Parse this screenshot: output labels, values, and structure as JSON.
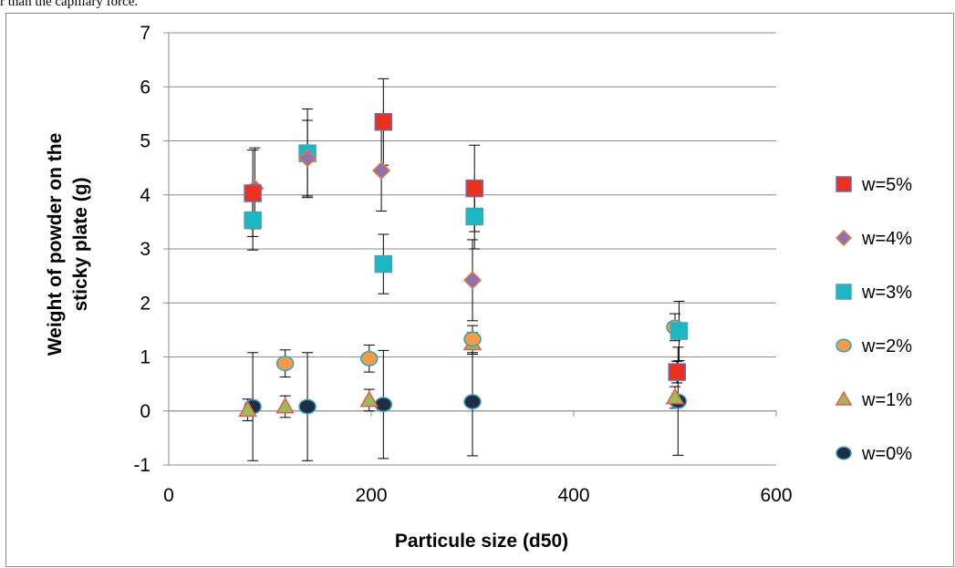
{
  "top_text": "r than the capillary force.",
  "chart_data": {
    "type": "scatter",
    "title": "",
    "xlabel": "Particule size (d50)",
    "ylabel": "Weight of powder on the sticky plate (g)",
    "xlim": [
      0,
      600
    ],
    "ylim": [
      -1,
      7
    ],
    "xticks": [
      0,
      200,
      400,
      600
    ],
    "yticks": [
      -1,
      0,
      1,
      2,
      3,
      4,
      5,
      6,
      7
    ],
    "grid": "horizontal",
    "legend_position": "right",
    "series": [
      {
        "name": "w=5%",
        "marker": "square",
        "color": "#e8321e",
        "border": "#7b64a8",
        "points": [
          {
            "x": 83,
            "y": 4.03,
            "err": 0.8
          },
          {
            "x": 212,
            "y": 5.35,
            "err": 0.8
          },
          {
            "x": 302,
            "y": 4.12,
            "err": 0.8
          },
          {
            "x": 502,
            "y": 0.72,
            "err": 0.2
          }
        ]
      },
      {
        "name": "w=4%",
        "marker": "diamond",
        "color": "#8e72b4",
        "border": "#e07a3a",
        "points": [
          {
            "x": 85,
            "y": 4.12,
            "err": 0.75
          },
          {
            "x": 137,
            "y": 4.68,
            "err": 0.7
          },
          {
            "x": 210,
            "y": 4.45,
            "err": 0.75
          },
          {
            "x": 300,
            "y": 2.42,
            "err": 0.75
          },
          {
            "x": 502,
            "y": 0.72,
            "err": 0.2
          }
        ]
      },
      {
        "name": "w=3%",
        "marker": "square",
        "color": "#19b8c4",
        "border": "#4aa0b0",
        "points": [
          {
            "x": 83,
            "y": 3.53,
            "err": 0.55
          },
          {
            "x": 137,
            "y": 4.77,
            "err": 0.82
          },
          {
            "x": 212,
            "y": 2.72,
            "err": 0.55
          },
          {
            "x": 302,
            "y": 3.6,
            "err": 0.6
          },
          {
            "x": 504,
            "y": 1.48,
            "err": 0.55
          }
        ]
      },
      {
        "name": "w=2%",
        "marker": "circle",
        "color": "#f59a48",
        "border": "#2aa8b8",
        "points": [
          {
            "x": 115,
            "y": 0.88,
            "err": 0.25
          },
          {
            "x": 198,
            "y": 0.97,
            "err": 0.25
          },
          {
            "x": 300,
            "y": 1.33,
            "err": 0.25
          },
          {
            "x": 500,
            "y": 1.55,
            "err": 0.25
          }
        ]
      },
      {
        "name": "w=1%",
        "marker": "triangle",
        "color": "#9bbb59",
        "border": "#e85a4a",
        "points": [
          {
            "x": 78,
            "y": 0.02,
            "err": 0.2
          },
          {
            "x": 115,
            "y": 0.08,
            "err": 0.2
          },
          {
            "x": 198,
            "y": 0.2,
            "err": 0.2
          },
          {
            "x": 300,
            "y": 1.25,
            "err": 0.2
          },
          {
            "x": 500,
            "y": 0.25,
            "err": 0.2
          }
        ]
      },
      {
        "name": "w=0%",
        "marker": "circle",
        "color": "#1f2f3f",
        "border": "#3aa0c8",
        "points": [
          {
            "x": 83,
            "y": 0.08,
            "err": 1.0
          },
          {
            "x": 137,
            "y": 0.08,
            "err": 1.0
          },
          {
            "x": 212,
            "y": 0.12,
            "err": 1.0
          },
          {
            "x": 300,
            "y": 0.17,
            "err": 1.0
          },
          {
            "x": 503,
            "y": 0.18,
            "err": 1.0
          }
        ]
      }
    ]
  }
}
